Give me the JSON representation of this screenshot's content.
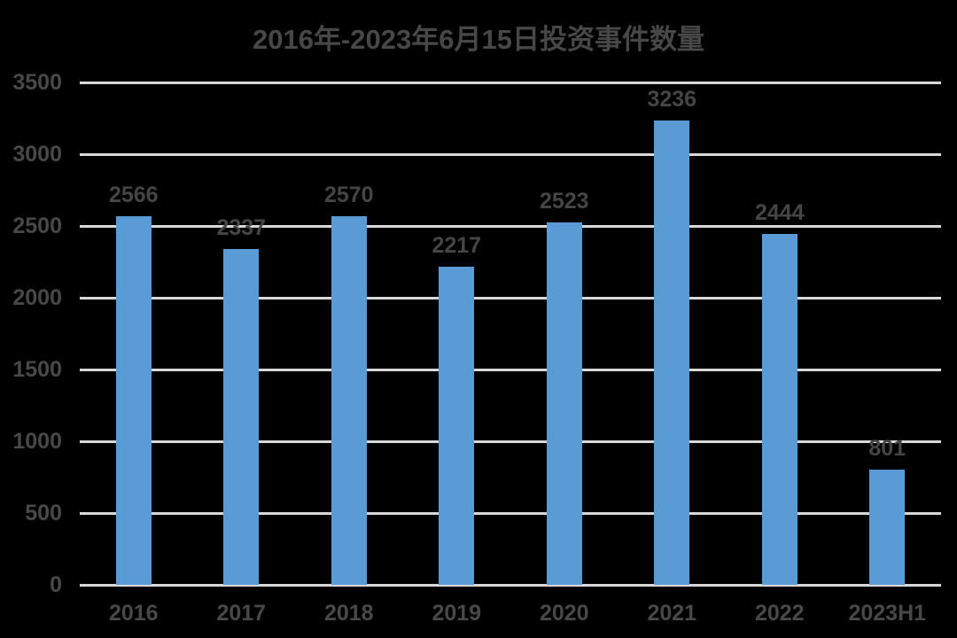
{
  "chart_data": {
    "type": "bar",
    "title": "2016年-2023年6月15日投资事件数量",
    "categories": [
      "2016",
      "2017",
      "2018",
      "2019",
      "2020",
      "2021",
      "2022",
      "2023H1"
    ],
    "values": [
      2566,
      2337,
      2570,
      2217,
      2523,
      3236,
      2444,
      801
    ],
    "xlabel": "",
    "ylabel": "",
    "ylim": [
      0,
      3500
    ],
    "yticks": [
      0,
      500,
      1000,
      1500,
      2000,
      2500,
      3000,
      3500
    ],
    "grid": true,
    "legend": false,
    "colors": {
      "bar": "#5B9BD5",
      "gridline": "#D8D8D8",
      "axis_line": "#D8D8D8",
      "label_text": "#484848",
      "title_text": "#474747",
      "background": "#000000"
    }
  }
}
